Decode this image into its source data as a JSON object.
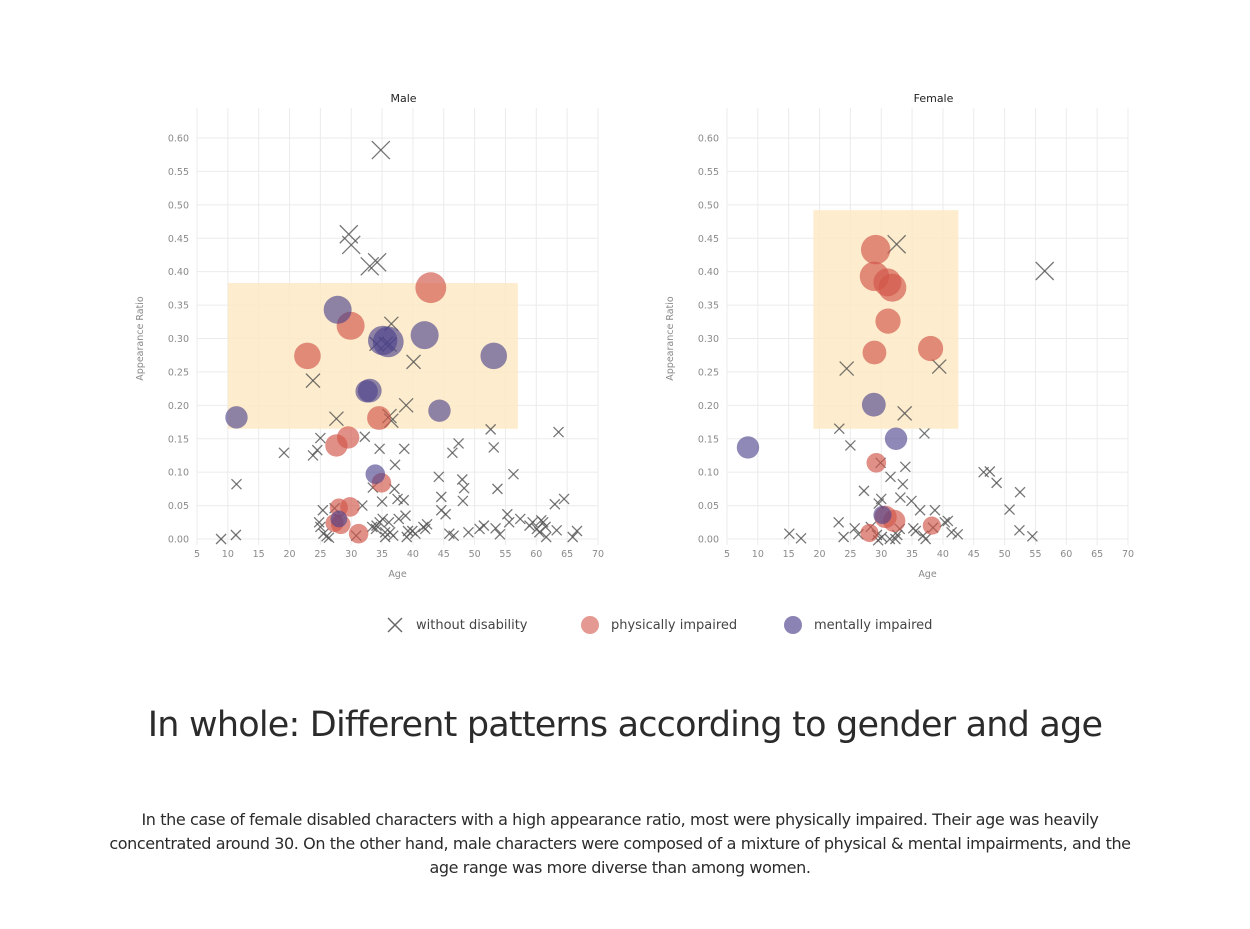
{
  "colors": {
    "without": "#555555",
    "physical": "#d2574a",
    "mental": "#4b418a",
    "highlight": "#fde9c4",
    "grid": "#ebebeb",
    "tick": "#8a8a8a"
  },
  "legend": {
    "items": [
      {
        "label": "without disability",
        "marker": "x-icon"
      },
      {
        "label": "physically impaired",
        "marker": "circle-icon"
      },
      {
        "label": "mentally impaired",
        "marker": "circle-icon"
      }
    ]
  },
  "headline": "In whole: Different patterns according to gender and age",
  "body": "In the case of female disabled characters with a high appearance ratio, most were physically impaired. Their age was heavily concentrated around 30. On the other hand, male characters were composed of a mixture of physical & mental impairments, and the age range was more diverse than among women.",
  "chart_data": [
    {
      "type": "scatter",
      "title": "Male",
      "xlabel": "Age",
      "ylabel": "Appearance Ratio",
      "xlim": [
        5,
        70
      ],
      "ylim": [
        0,
        0.62
      ],
      "xticks": [
        "5",
        "10",
        "15",
        "20",
        "25",
        "30",
        "35",
        "40",
        "45",
        "50",
        "55",
        "60",
        "65",
        "70"
      ],
      "yticks": [
        "0.00",
        "0.05",
        "0.10",
        "0.15",
        "0.20",
        "0.25",
        "0.30",
        "0.35",
        "0.40",
        "0.45",
        "0.50",
        "0.55",
        "0.60"
      ],
      "grid": true,
      "highlight": {
        "x": [
          10,
          57
        ],
        "y": [
          0.165,
          0.383
        ]
      },
      "series": [
        {
          "name": "without disability",
          "points": [
            [
              34.8,
              0.582
            ],
            [
              29.6,
              0.456
            ],
            [
              30.0,
              0.44
            ],
            [
              33.0,
              0.408
            ],
            [
              34.2,
              0.414
            ],
            [
              36.5,
              0.322
            ],
            [
              34.1,
              0.292
            ],
            [
              35.6,
              0.292
            ],
            [
              36.2,
              0.291
            ],
            [
              40.1,
              0.265
            ],
            [
              23.8,
              0.237
            ],
            [
              38.9,
              0.2
            ],
            [
              27.6,
              0.18
            ],
            [
              36.2,
              0.184
            ],
            [
              36.5,
              0.177
            ],
            [
              52.6,
              0.164
            ],
            [
              63.6,
              0.16
            ],
            [
              25.0,
              0.151
            ],
            [
              32.2,
              0.153
            ],
            [
              47.4,
              0.143
            ],
            [
              19.1,
              0.129
            ],
            [
              23.8,
              0.125
            ],
            [
              24.5,
              0.133
            ],
            [
              34.6,
              0.135
            ],
            [
              38.6,
              0.135
            ],
            [
              46.4,
              0.129
            ],
            [
              53.1,
              0.137
            ],
            [
              37.1,
              0.111
            ],
            [
              56.3,
              0.097
            ],
            [
              11.4,
              0.082
            ],
            [
              44.2,
              0.093
            ],
            [
              48.0,
              0.089
            ],
            [
              48.3,
              0.076
            ],
            [
              53.7,
              0.075
            ],
            [
              33.5,
              0.077
            ],
            [
              37.0,
              0.075
            ],
            [
              44.6,
              0.063
            ],
            [
              48.1,
              0.057
            ],
            [
              64.5,
              0.06
            ],
            [
              63.0,
              0.052
            ],
            [
              35.0,
              0.056
            ],
            [
              37.5,
              0.06
            ],
            [
              38.5,
              0.058
            ],
            [
              31.8,
              0.05
            ],
            [
              27.3,
              0.046
            ],
            [
              25.4,
              0.043
            ],
            [
              44.6,
              0.043
            ],
            [
              45.3,
              0.037
            ],
            [
              55.3,
              0.037
            ],
            [
              36.1,
              0.025
            ],
            [
              37.7,
              0.03
            ],
            [
              38.8,
              0.035
            ],
            [
              33.4,
              0.018
            ],
            [
              34.1,
              0.02
            ],
            [
              34.6,
              0.025
            ],
            [
              35.1,
              0.03
            ],
            [
              34.0,
              0.015
            ],
            [
              35.5,
              0.01
            ],
            [
              36.3,
              0.01
            ],
            [
              39.2,
              0.012
            ],
            [
              39.9,
              0.012
            ],
            [
              41.7,
              0.018
            ],
            [
              42.3,
              0.022
            ],
            [
              40.4,
              0.008
            ],
            [
              39.0,
              0.003
            ],
            [
              36.8,
              0.005
            ],
            [
              35.5,
              0.003
            ],
            [
              24.8,
              0.025
            ],
            [
              25.0,
              0.018
            ],
            [
              25.5,
              0.008
            ],
            [
              26.0,
              0.004
            ],
            [
              26.4,
              0.002
            ],
            [
              45.9,
              0.008
            ],
            [
              46.6,
              0.005
            ],
            [
              49.0,
              0.01
            ],
            [
              50.8,
              0.015
            ],
            [
              51.5,
              0.02
            ],
            [
              53.4,
              0.016
            ],
            [
              54.1,
              0.007
            ],
            [
              55.6,
              0.025
            ],
            [
              57.4,
              0.03
            ],
            [
              59.4,
              0.025
            ],
            [
              60.1,
              0.015
            ],
            [
              60.5,
              0.01
            ],
            [
              61.1,
              0.025
            ],
            [
              61.5,
              0.018
            ],
            [
              61.6,
              0.003
            ],
            [
              63.3,
              0.013
            ],
            [
              65.9,
              0.003
            ],
            [
              66.6,
              0.012
            ],
            [
              60.8,
              0.028
            ],
            [
              58.9,
              0.02
            ],
            [
              42.0,
              0.015
            ],
            [
              30.8,
              0.005
            ],
            [
              8.9,
              0.0
            ],
            [
              11.3,
              0.006
            ]
          ]
        },
        {
          "name": "physically impaired",
          "points": [
            [
              42.9,
              0.376,
              2.2
            ],
            [
              29.9,
              0.319,
              2.0
            ],
            [
              22.9,
              0.274,
              1.9
            ],
            [
              34.5,
              0.181,
              1.7
            ],
            [
              29.5,
              0.152,
              1.6
            ],
            [
              27.6,
              0.14,
              1.6
            ],
            [
              34.9,
              0.084,
              1.4
            ],
            [
              28.0,
              0.047,
              1.3
            ],
            [
              29.8,
              0.048,
              1.4
            ],
            [
              27.3,
              0.024,
              1.3
            ],
            [
              28.3,
              0.022,
              1.4
            ],
            [
              31.2,
              0.008,
              1.4
            ]
          ]
        },
        {
          "name": "mentally impaired",
          "points": [
            [
              27.8,
              0.343,
              2.0
            ],
            [
              35.1,
              0.297,
              2.1
            ],
            [
              36.0,
              0.295,
              2.2
            ],
            [
              41.9,
              0.305,
              2.0
            ],
            [
              53.1,
              0.274,
              1.9
            ],
            [
              32.5,
              0.221,
              1.6
            ],
            [
              33.0,
              0.222,
              1.7
            ],
            [
              11.4,
              0.182,
              1.6
            ],
            [
              44.3,
              0.192,
              1.6
            ],
            [
              33.9,
              0.097,
              1.4
            ],
            [
              28.0,
              0.03,
              1.2
            ]
          ]
        }
      ]
    },
    {
      "type": "scatter",
      "title": "Female",
      "xlabel": "Age",
      "ylabel": "Appearance Ratio",
      "xlim": [
        5,
        70
      ],
      "ylim": [
        0,
        0.62
      ],
      "xticks": [
        "5",
        "10",
        "15",
        "20",
        "25",
        "30",
        "35",
        "40",
        "45",
        "50",
        "55",
        "60",
        "65",
        "70"
      ],
      "yticks": [
        "0.00",
        "0.05",
        "0.10",
        "0.15",
        "0.20",
        "0.25",
        "0.30",
        "0.35",
        "0.40",
        "0.45",
        "0.50",
        "0.55",
        "0.60"
      ],
      "grid": true,
      "highlight": {
        "x": [
          19,
          42.5
        ],
        "y": [
          0.165,
          0.492
        ]
      },
      "series": [
        {
          "name": "without disability",
          "points": [
            [
              32.5,
              0.441
            ],
            [
              56.5,
              0.401
            ],
            [
              24.4,
              0.255
            ],
            [
              39.4,
              0.258
            ],
            [
              33.8,
              0.188
            ],
            [
              23.2,
              0.165
            ],
            [
              37.0,
              0.158
            ],
            [
              25.0,
              0.14
            ],
            [
              29.9,
              0.114
            ],
            [
              33.9,
              0.108
            ],
            [
              46.6,
              0.1
            ],
            [
              47.6,
              0.101
            ],
            [
              48.7,
              0.084
            ],
            [
              31.5,
              0.093
            ],
            [
              27.2,
              0.072
            ],
            [
              33.5,
              0.082
            ],
            [
              52.5,
              0.07
            ],
            [
              30.0,
              0.06
            ],
            [
              33.1,
              0.062
            ],
            [
              34.9,
              0.057
            ],
            [
              50.8,
              0.044
            ],
            [
              36.3,
              0.043
            ],
            [
              38.7,
              0.043
            ],
            [
              29.6,
              0.053
            ],
            [
              23.1,
              0.025
            ],
            [
              25.7,
              0.016
            ],
            [
              26.3,
              0.007
            ],
            [
              28.3,
              0.018
            ],
            [
              29.3,
              0.006
            ],
            [
              30.1,
              0.003
            ],
            [
              31.4,
              0.0
            ],
            [
              32.3,
              0.0
            ],
            [
              32.6,
              0.006
            ],
            [
              33.0,
              0.015
            ],
            [
              35.2,
              0.016
            ],
            [
              35.6,
              0.012
            ],
            [
              36.8,
              0.005
            ],
            [
              37.2,
              0.0
            ],
            [
              38.4,
              0.017
            ],
            [
              40.3,
              0.025
            ],
            [
              40.8,
              0.027
            ],
            [
              41.4,
              0.01
            ],
            [
              42.4,
              0.007
            ],
            [
              52.4,
              0.013
            ],
            [
              54.5,
              0.004
            ],
            [
              15.1,
              0.008
            ],
            [
              17.0,
              0.001
            ],
            [
              23.9,
              0.003
            ],
            [
              29.5,
              -0.002
            ]
          ]
        },
        {
          "name": "physically impaired",
          "points": [
            [
              29.1,
              0.433,
              2.1
            ],
            [
              28.9,
              0.393,
              2.1
            ],
            [
              31.0,
              0.384,
              2.0
            ],
            [
              31.8,
              0.376,
              2.0
            ],
            [
              31.1,
              0.326,
              1.8
            ],
            [
              28.9,
              0.279,
              1.7
            ],
            [
              38.0,
              0.285,
              1.8
            ],
            [
              29.2,
              0.114,
              1.4
            ],
            [
              30.7,
              0.033,
              1.6
            ],
            [
              32.1,
              0.027,
              1.6
            ],
            [
              28.1,
              0.009,
              1.3
            ],
            [
              38.2,
              0.02,
              1.3
            ]
          ]
        },
        {
          "name": "mentally impaired",
          "points": [
            [
              28.8,
              0.201,
              1.7
            ],
            [
              32.4,
              0.15,
              1.6
            ],
            [
              8.4,
              0.137,
              1.6
            ],
            [
              30.2,
              0.036,
              1.3
            ]
          ]
        }
      ]
    }
  ]
}
